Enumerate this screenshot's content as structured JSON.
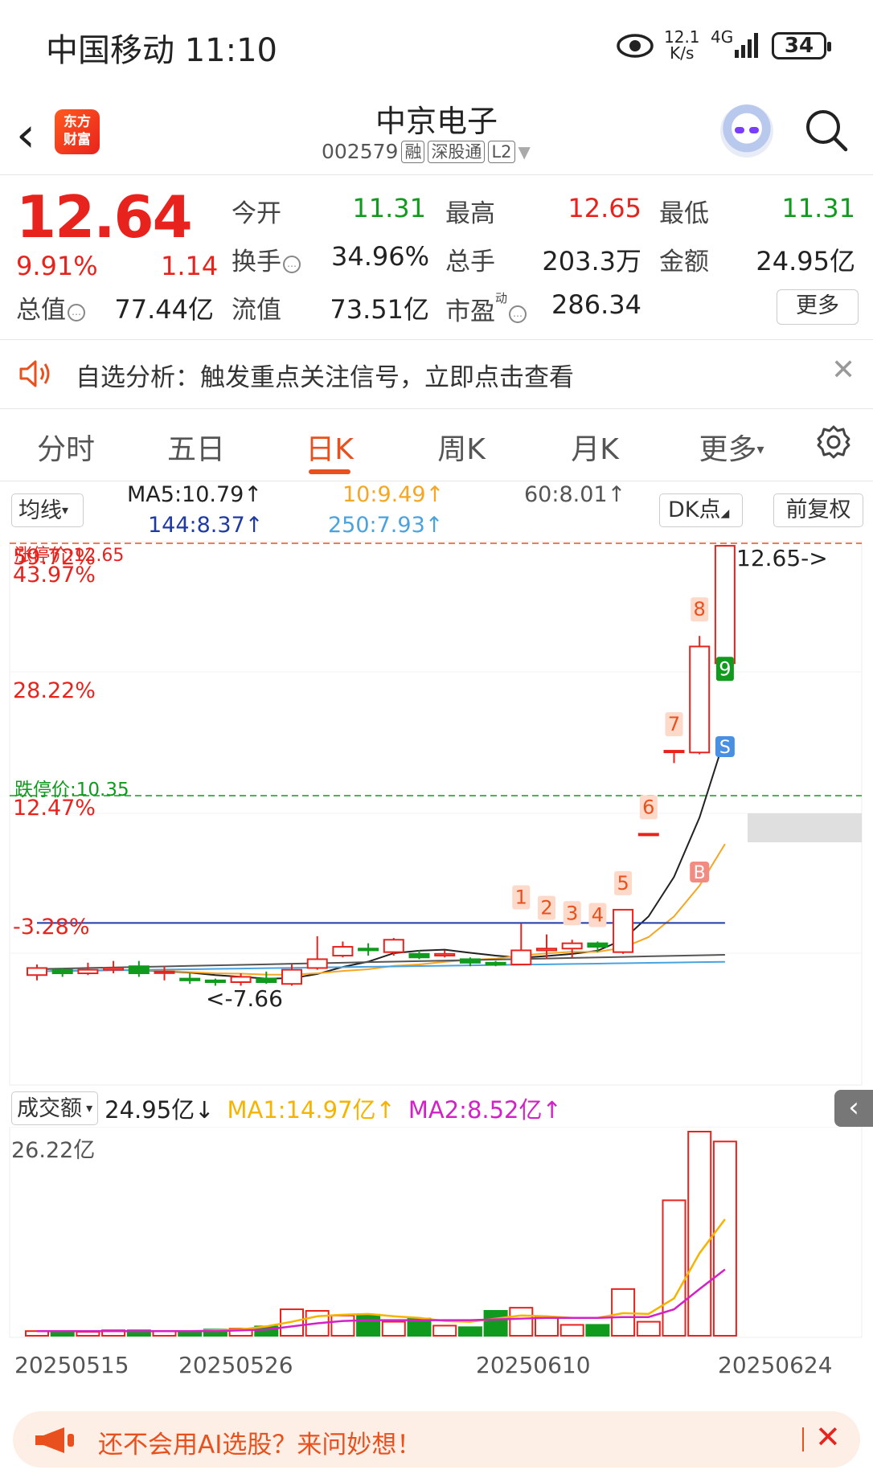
{
  "status_bar": {
    "carrier": "中国移动",
    "time": "11:10",
    "speed_value": "12.1",
    "speed_unit": "K/s",
    "network": "4G",
    "battery": "34"
  },
  "header": {
    "logo_text": "东方财富",
    "stock_name": "中京电子",
    "stock_code": "002579",
    "tag_margin": "融",
    "tag_connect": "深股通",
    "tag_level": "L2"
  },
  "quote": {
    "price": "12.64",
    "change_pct": "9.91%",
    "change_amt": "1.14",
    "open_label": "今开",
    "open_value": "11.31",
    "high_label": "最高",
    "high_value": "12.65",
    "low_label": "最低",
    "low_value": "11.31",
    "turnover_label": "换手",
    "turnover_value": "34.96%",
    "volume_label": "总手",
    "volume_value": "203.3万",
    "amount_label": "金额",
    "amount_value": "24.95亿",
    "mktcap_label": "总值",
    "mktcap_value": "77.44亿",
    "float_label": "流值",
    "float_value": "73.51亿",
    "pe_label": "市盈",
    "pe_sup": "动",
    "pe_value": "286.34",
    "more_label": "更多"
  },
  "alert": {
    "text": "自选分析：触发重点关注信号，立即点击查看"
  },
  "tabs": [
    {
      "label": "分时",
      "active": false
    },
    {
      "label": "五日",
      "active": false
    },
    {
      "label": "日K",
      "active": true
    },
    {
      "label": "周K",
      "active": false
    },
    {
      "label": "月K",
      "active": false
    },
    {
      "label": "更多",
      "active": false
    }
  ],
  "ma_legend": {
    "selector": "均线",
    "ma5": "MA5:10.79↑",
    "ma10": "10:9.49↑",
    "ma60": "60:8.01↑",
    "ma144": "144:8.37↑",
    "ma250": "250:7.93↑",
    "dk_button": "DK点",
    "adjust_button": "前复权",
    "colors": {
      "ma5": "#222222",
      "ma10": "#f5a623",
      "ma60": "#555555",
      "ma144": "#1f3aa6",
      "ma250": "#4aa3df"
    }
  },
  "chart_data": [
    {
      "type": "candlestick",
      "y_axis_labels": [
        "59.72%",
        "43.97%",
        "28.22%",
        "12.47%",
        "-3.28%"
      ],
      "limit_up_label": "涨停价:12.65",
      "limit_down_label": "跌停价:10.35",
      "high_marker": "12.65->",
      "low_marker": "<-7.66",
      "signal_numbers": [
        "1",
        "2",
        "3",
        "4",
        "5",
        "6",
        "7",
        "8",
        "9"
      ],
      "buy_label": "B",
      "sell_label": "S",
      "x_labels": [
        "20250515",
        "20250526",
        "20250610",
        "20250624"
      ],
      "candles": [
        {
          "o": 7.78,
          "c": 7.86,
          "h": 7.9,
          "l": 7.72
        },
        {
          "o": 7.84,
          "c": 7.8,
          "h": 7.86,
          "l": 7.76
        },
        {
          "o": 7.8,
          "c": 7.84,
          "h": 7.92,
          "l": 7.78
        },
        {
          "o": 7.84,
          "c": 7.86,
          "h": 7.94,
          "l": 7.8
        },
        {
          "o": 7.88,
          "c": 7.8,
          "h": 7.94,
          "l": 7.76
        },
        {
          "o": 7.82,
          "c": 7.82,
          "h": 7.88,
          "l": 7.72
        },
        {
          "o": 7.74,
          "c": 7.72,
          "h": 7.8,
          "l": 7.68
        },
        {
          "o": 7.72,
          "c": 7.7,
          "h": 7.74,
          "l": 7.66
        },
        {
          "o": 7.7,
          "c": 7.76,
          "h": 7.8,
          "l": 7.66
        },
        {
          "o": 7.74,
          "c": 7.7,
          "h": 7.82,
          "l": 7.68
        },
        {
          "o": 7.68,
          "c": 7.84,
          "h": 7.9,
          "l": 7.66
        },
        {
          "o": 7.86,
          "c": 7.96,
          "h": 8.22,
          "l": 7.84
        },
        {
          "o": 8.0,
          "c": 8.1,
          "h": 8.16,
          "l": 7.98
        },
        {
          "o": 8.08,
          "c": 8.06,
          "h": 8.14,
          "l": 8.0
        },
        {
          "o": 8.04,
          "c": 8.18,
          "h": 8.2,
          "l": 8.0
        },
        {
          "o": 8.02,
          "c": 7.98,
          "h": 8.06,
          "l": 7.96
        },
        {
          "o": 8.0,
          "c": 8.02,
          "h": 8.06,
          "l": 7.98
        },
        {
          "o": 7.96,
          "c": 7.92,
          "h": 7.98,
          "l": 7.88
        },
        {
          "o": 7.92,
          "c": 7.9,
          "h": 7.94,
          "l": 7.88
        },
        {
          "o": 7.9,
          "c": 8.06,
          "h": 8.36,
          "l": 7.9
        },
        {
          "o": 8.06,
          "c": 8.08,
          "h": 8.24,
          "l": 7.96
        },
        {
          "o": 8.08,
          "c": 8.14,
          "h": 8.18,
          "l": 7.98
        },
        {
          "o": 8.14,
          "c": 8.1,
          "h": 8.16,
          "l": 8.04
        },
        {
          "o": 8.04,
          "c": 8.52,
          "h": 8.52,
          "l": 8.02
        },
        {
          "o": 9.38,
          "c": 9.38,
          "h": 9.38,
          "l": 9.38
        },
        {
          "o": 10.32,
          "c": 10.32,
          "h": 10.32,
          "l": 10.18
        },
        {
          "o": 10.3,
          "c": 11.5,
          "h": 11.62,
          "l": 10.28
        },
        {
          "o": 11.31,
          "c": 12.64,
          "h": 12.65,
          "l": 11.31
        }
      ]
    },
    {
      "type": "bar",
      "title": "成交额",
      "current": "24.95亿↓",
      "ma1": "MA1:14.97亿↑",
      "ma2": "MA2:8.52亿↑",
      "y_max_label": "26.22亿",
      "values": [
        0.6,
        0.6,
        0.5,
        0.7,
        0.7,
        0.6,
        0.5,
        0.8,
        0.9,
        1.2,
        3.4,
        3.2,
        2.6,
        2.7,
        1.8,
        2.2,
        1.3,
        1.1,
        3.2,
        3.6,
        2.4,
        1.4,
        1.4,
        6.0,
        1.8,
        17.4,
        26.22,
        24.95
      ],
      "ma1_values": [
        0.6,
        0.6,
        0.6,
        0.6,
        0.6,
        0.6,
        0.6,
        0.7,
        0.8,
        1.2,
        1.8,
        2.5,
        2.7,
        2.8,
        2.5,
        2.3,
        1.9,
        1.8,
        2.2,
        2.6,
        2.5,
        2.3,
        2.3,
        2.9,
        2.8,
        4.8,
        10.6,
        14.97
      ],
      "ma2_values": [
        0.6,
        0.6,
        0.6,
        0.6,
        0.6,
        0.6,
        0.6,
        0.6,
        0.7,
        0.8,
        1.2,
        1.6,
        1.9,
        2.0,
        2.0,
        2.0,
        2.0,
        2.0,
        2.1,
        2.2,
        2.3,
        2.3,
        2.3,
        2.4,
        2.4,
        3.4,
        6.0,
        8.52
      ]
    }
  ],
  "banner": {
    "text": "还不会用AI选股？来问妙想！"
  }
}
